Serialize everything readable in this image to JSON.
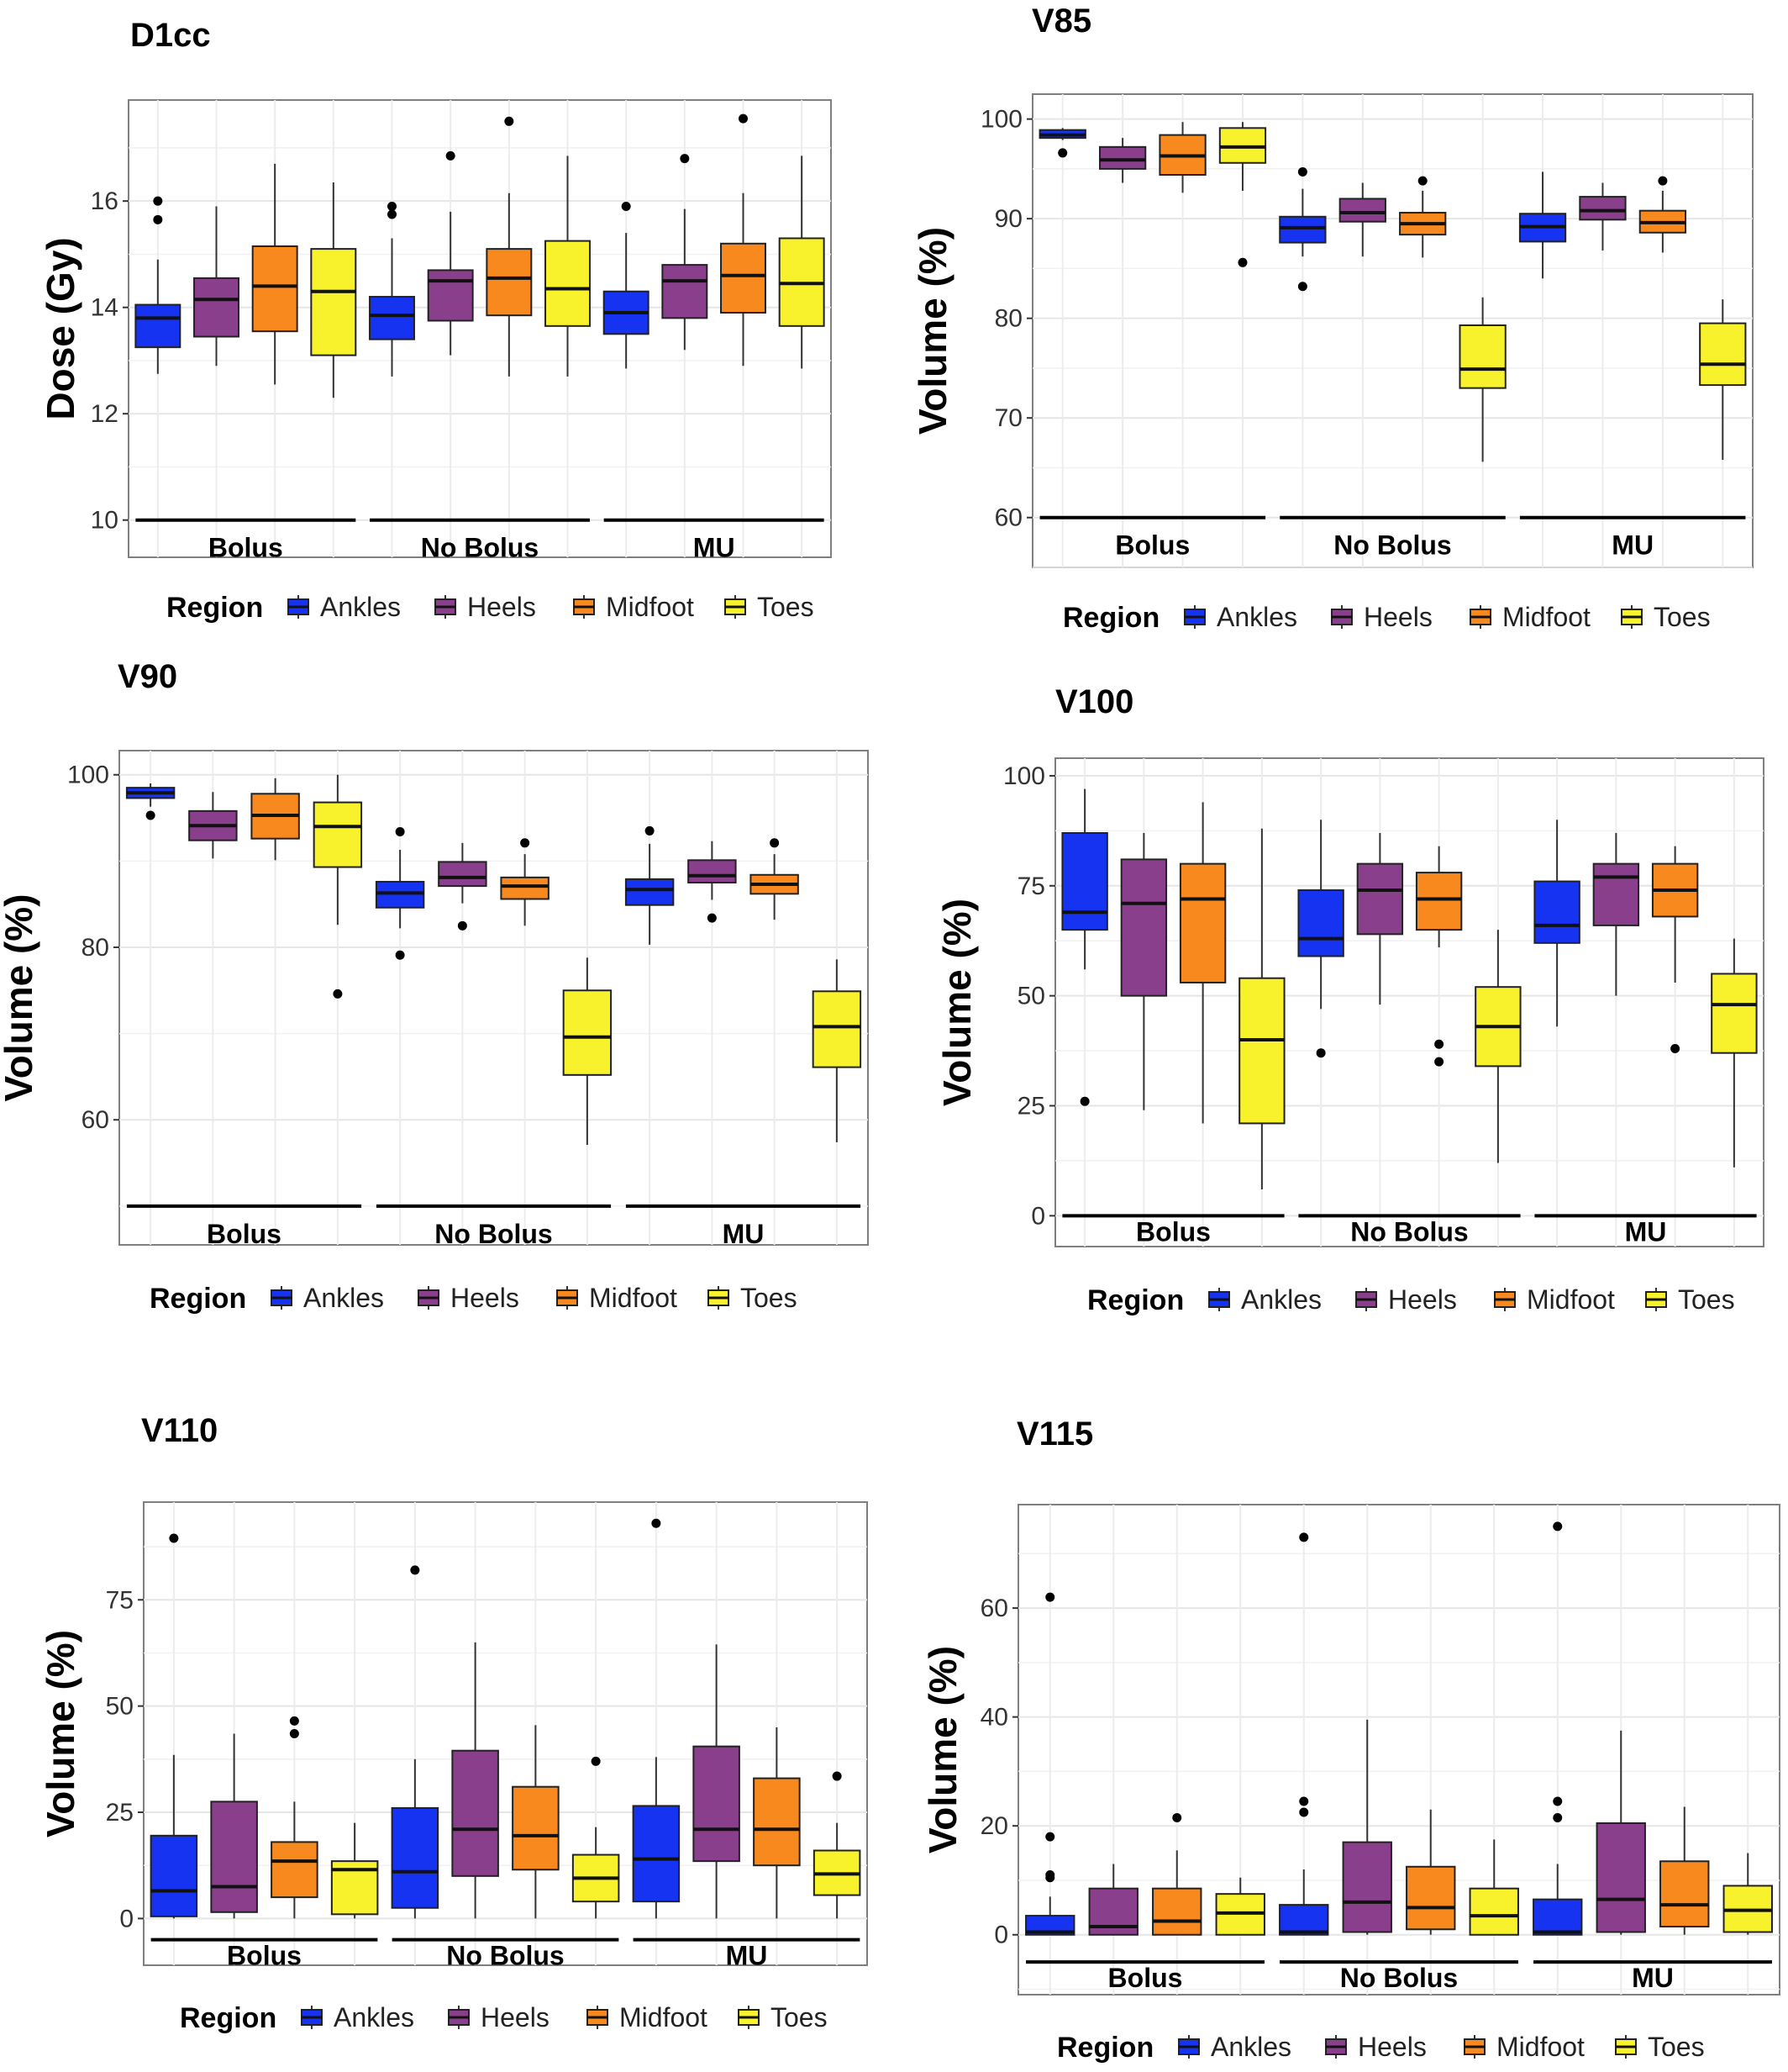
{
  "figure": {
    "legend_title": "Region",
    "regions": [
      "Ankles",
      "Heels",
      "Midfoot",
      "Toes"
    ],
    "colors": {
      "Ankles": "#1533f0",
      "Heels": "#8a3f8c",
      "Midfoot": "#f7891f",
      "Toes": "#f8f22d"
    },
    "groups": [
      "Bolus",
      "No Bolus",
      "MU"
    ]
  },
  "chart_data": [
    {
      "type": "box",
      "title": "D1cc",
      "ylabel": "Dose (Gy)",
      "ylim": [
        9.3,
        17.9
      ],
      "yticks": [
        10,
        12,
        14,
        16
      ],
      "group_line": 10,
      "groups": [
        "Bolus",
        "No Bolus",
        "MU"
      ],
      "series": [
        {
          "name": "Ankles",
          "boxes": [
            {
              "min": 12.75,
              "q1": 13.25,
              "median": 13.8,
              "q3": 14.05,
              "max": 14.9,
              "outliers": [
                15.65,
                16.0
              ]
            },
            {
              "min": 12.7,
              "q1": 13.4,
              "median": 13.85,
              "q3": 14.2,
              "max": 15.3,
              "outliers": [
                15.75,
                15.9
              ]
            },
            {
              "min": 12.85,
              "q1": 13.5,
              "median": 13.9,
              "q3": 14.3,
              "max": 15.4,
              "outliers": [
                15.9
              ]
            }
          ]
        },
        {
          "name": "Heels",
          "boxes": [
            {
              "min": 12.9,
              "q1": 13.45,
              "median": 14.15,
              "q3": 14.55,
              "max": 15.9,
              "outliers": []
            },
            {
              "min": 13.1,
              "q1": 13.75,
              "median": 14.5,
              "q3": 14.7,
              "max": 15.8,
              "outliers": [
                16.85
              ]
            },
            {
              "min": 13.2,
              "q1": 13.8,
              "median": 14.5,
              "q3": 14.8,
              "max": 15.85,
              "outliers": [
                16.8
              ]
            }
          ]
        },
        {
          "name": "Midfoot",
          "boxes": [
            {
              "min": 12.55,
              "q1": 13.55,
              "median": 14.4,
              "q3": 15.15,
              "max": 16.7,
              "outliers": []
            },
            {
              "min": 12.7,
              "q1": 13.85,
              "median": 14.55,
              "q3": 15.1,
              "max": 16.15,
              "outliers": [
                17.5
              ]
            },
            {
              "min": 12.9,
              "q1": 13.9,
              "median": 14.6,
              "q3": 15.2,
              "max": 16.15,
              "outliers": [
                17.55
              ]
            }
          ]
        },
        {
          "name": "Toes",
          "boxes": [
            {
              "min": 12.3,
              "q1": 13.1,
              "median": 14.3,
              "q3": 15.1,
              "max": 16.35,
              "outliers": []
            },
            {
              "min": 12.7,
              "q1": 13.65,
              "median": 14.35,
              "q3": 15.25,
              "max": 16.85,
              "outliers": []
            },
            {
              "min": 12.85,
              "q1": 13.65,
              "median": 14.45,
              "q3": 15.3,
              "max": 16.85,
              "outliers": []
            }
          ]
        }
      ]
    },
    {
      "type": "box",
      "title": "V85",
      "ylabel": "Volume (%)",
      "ylim": [
        55,
        102.5
      ],
      "yticks": [
        60,
        70,
        80,
        90,
        100
      ],
      "group_line": 60,
      "groups": [
        "Bolus",
        "No Bolus",
        "MU"
      ],
      "series": [
        {
          "name": "Ankles",
          "boxes": [
            {
              "min": 97.9,
              "q1": 98.1,
              "median": 98.4,
              "q3": 98.9,
              "max": 99.1,
              "outliers": [
                96.6
              ]
            },
            {
              "min": 86.2,
              "q1": 87.6,
              "median": 89.1,
              "q3": 90.2,
              "max": 93.0,
              "outliers": [
                94.7,
                83.2
              ]
            },
            {
              "min": 84.0,
              "q1": 87.7,
              "median": 89.2,
              "q3": 90.5,
              "max": 94.7,
              "outliers": []
            }
          ]
        },
        {
          "name": "Heels",
          "boxes": [
            {
              "min": 93.6,
              "q1": 95.0,
              "median": 95.9,
              "q3": 97.2,
              "max": 98.1,
              "outliers": []
            },
            {
              "min": 86.2,
              "q1": 89.7,
              "median": 90.6,
              "q3": 92.0,
              "max": 93.6,
              "outliers": []
            },
            {
              "min": 86.8,
              "q1": 89.9,
              "median": 90.8,
              "q3": 92.2,
              "max": 93.6,
              "outliers": []
            }
          ]
        },
        {
          "name": "Midfoot",
          "boxes": [
            {
              "min": 92.6,
              "q1": 94.4,
              "median": 96.3,
              "q3": 98.4,
              "max": 99.7,
              "outliers": []
            },
            {
              "min": 86.1,
              "q1": 88.4,
              "median": 89.5,
              "q3": 90.6,
              "max": 92.8,
              "outliers": [
                93.8
              ]
            },
            {
              "min": 86.6,
              "q1": 88.6,
              "median": 89.6,
              "q3": 90.8,
              "max": 92.8,
              "outliers": [
                93.8
              ]
            }
          ]
        },
        {
          "name": "Toes",
          "boxes": [
            {
              "min": 92.8,
              "q1": 95.6,
              "median": 97.2,
              "q3": 99.1,
              "max": 99.7,
              "outliers": [
                85.6
              ]
            },
            {
              "min": 65.6,
              "q1": 73.0,
              "median": 74.9,
              "q3": 79.3,
              "max": 82.1,
              "outliers": []
            },
            {
              "min": 65.8,
              "q1": 73.3,
              "median": 75.4,
              "q3": 79.5,
              "max": 81.9,
              "outliers": []
            }
          ]
        }
      ]
    },
    {
      "type": "box",
      "title": "V90",
      "ylabel": "Volume (%)",
      "ylim": [
        45.5,
        102.8
      ],
      "yticks": [
        60,
        80,
        100
      ],
      "group_line": 50,
      "groups": [
        "Bolus",
        "No Bolus",
        "MU"
      ],
      "series": [
        {
          "name": "Ankles",
          "boxes": [
            {
              "min": 96.3,
              "q1": 97.3,
              "median": 97.9,
              "q3": 98.5,
              "max": 99.0,
              "outliers": [
                95.3
              ]
            },
            {
              "min": 82.2,
              "q1": 84.6,
              "median": 86.3,
              "q3": 87.6,
              "max": 91.3,
              "outliers": [
                93.4,
                79.1
              ]
            },
            {
              "min": 80.3,
              "q1": 84.9,
              "median": 86.7,
              "q3": 87.9,
              "max": 92.0,
              "outliers": [
                93.5
              ]
            }
          ]
        },
        {
          "name": "Heels",
          "boxes": [
            {
              "min": 90.3,
              "q1": 92.4,
              "median": 94.1,
              "q3": 95.8,
              "max": 98.0,
              "outliers": []
            },
            {
              "min": 85.1,
              "q1": 87.1,
              "median": 88.1,
              "q3": 89.9,
              "max": 92.1,
              "outliers": [
                82.5
              ]
            },
            {
              "min": 85.5,
              "q1": 87.5,
              "median": 88.3,
              "q3": 90.1,
              "max": 92.3,
              "outliers": [
                83.4
              ]
            }
          ]
        },
        {
          "name": "Midfoot",
          "boxes": [
            {
              "min": 90.1,
              "q1": 92.6,
              "median": 95.3,
              "q3": 97.8,
              "max": 99.6,
              "outliers": []
            },
            {
              "min": 82.5,
              "q1": 85.6,
              "median": 87.1,
              "q3": 88.1,
              "max": 90.8,
              "outliers": [
                92.1
              ]
            },
            {
              "min": 83.2,
              "q1": 86.2,
              "median": 87.3,
              "q3": 88.4,
              "max": 90.8,
              "outliers": [
                92.1
              ]
            }
          ]
        },
        {
          "name": "Toes",
          "boxes": [
            {
              "min": 82.6,
              "q1": 89.3,
              "median": 94.0,
              "q3": 96.8,
              "max": 100.0,
              "outliers": [
                74.6
              ]
            },
            {
              "min": 57.1,
              "q1": 65.2,
              "median": 69.6,
              "q3": 75.0,
              "max": 78.8,
              "outliers": []
            },
            {
              "min": 57.4,
              "q1": 66.1,
              "median": 70.8,
              "q3": 74.9,
              "max": 78.6,
              "outliers": []
            }
          ]
        }
      ]
    },
    {
      "type": "box",
      "title": "V100",
      "ylabel": "Volume (%)",
      "ylim": [
        -7,
        104
      ],
      "yticks": [
        0,
        25,
        50,
        75,
        100
      ],
      "group_line": 0,
      "groups": [
        "Bolus",
        "No Bolus",
        "MU"
      ],
      "series": [
        {
          "name": "Ankles",
          "boxes": [
            {
              "min": 56,
              "q1": 65,
              "median": 69,
              "q3": 87,
              "max": 97,
              "outliers": [
                26
              ]
            },
            {
              "min": 47,
              "q1": 59,
              "median": 63,
              "q3": 74,
              "max": 90,
              "outliers": [
                37
              ]
            },
            {
              "min": 43,
              "q1": 62,
              "median": 66,
              "q3": 76,
              "max": 90,
              "outliers": []
            }
          ]
        },
        {
          "name": "Heels",
          "boxes": [
            {
              "min": 24,
              "q1": 50,
              "median": 71,
              "q3": 81,
              "max": 87,
              "outliers": []
            },
            {
              "min": 48,
              "q1": 64,
              "median": 74,
              "q3": 80,
              "max": 87,
              "outliers": []
            },
            {
              "min": 50,
              "q1": 66,
              "median": 77,
              "q3": 80,
              "max": 87,
              "outliers": []
            }
          ]
        },
        {
          "name": "Midfoot",
          "boxes": [
            {
              "min": 21,
              "q1": 53,
              "median": 72,
              "q3": 80,
              "max": 94,
              "outliers": []
            },
            {
              "min": 61,
              "q1": 65,
              "median": 72,
              "q3": 78,
              "max": 84,
              "outliers": [
                39,
                35
              ]
            },
            {
              "min": 53,
              "q1": 68,
              "median": 74,
              "q3": 80,
              "max": 84,
              "outliers": [
                38
              ]
            }
          ]
        },
        {
          "name": "Toes",
          "boxes": [
            {
              "min": 6,
              "q1": 21,
              "median": 40,
              "q3": 54,
              "max": 88,
              "outliers": []
            },
            {
              "min": 12,
              "q1": 34,
              "median": 43,
              "q3": 52,
              "max": 65,
              "outliers": []
            },
            {
              "min": 11,
              "q1": 37,
              "median": 48,
              "q3": 55,
              "max": 63,
              "outliers": []
            }
          ]
        }
      ]
    },
    {
      "type": "box",
      "title": "V110",
      "ylabel": "Volume (%)",
      "ylim": [
        -11,
        98
      ],
      "yticks": [
        0,
        25,
        50,
        75
      ],
      "group_line": -5,
      "groups": [
        "Bolus",
        "No Bolus",
        "MU"
      ],
      "series": [
        {
          "name": "Ankles",
          "boxes": [
            {
              "min": 0,
              "q1": 0.5,
              "median": 6.5,
              "q3": 19.5,
              "max": 38.5,
              "outliers": [
                89.5
              ]
            },
            {
              "min": 0,
              "q1": 2.5,
              "median": 11,
              "q3": 26,
              "max": 37.5,
              "outliers": [
                82
              ]
            },
            {
              "min": 0,
              "q1": 4,
              "median": 14,
              "q3": 26.5,
              "max": 38,
              "outliers": [
                93
              ]
            }
          ]
        },
        {
          "name": "Heels",
          "boxes": [
            {
              "min": 0,
              "q1": 1.5,
              "median": 7.5,
              "q3": 27.5,
              "max": 43.5,
              "outliers": []
            },
            {
              "min": 0,
              "q1": 10,
              "median": 21,
              "q3": 39.5,
              "max": 65,
              "outliers": []
            },
            {
              "min": 0,
              "q1": 13.5,
              "median": 21,
              "q3": 40.5,
              "max": 64.5,
              "outliers": []
            }
          ]
        },
        {
          "name": "Midfoot",
          "boxes": [
            {
              "min": 0,
              "q1": 5,
              "median": 13.5,
              "q3": 18,
              "max": 27.5,
              "outliers": [
                46.5,
                43.5
              ]
            },
            {
              "min": 0,
              "q1": 11.5,
              "median": 19.5,
              "q3": 31,
              "max": 45.5,
              "outliers": []
            },
            {
              "min": 0,
              "q1": 12.5,
              "median": 21,
              "q3": 33,
              "max": 45,
              "outliers": []
            }
          ]
        },
        {
          "name": "Toes",
          "boxes": [
            {
              "min": 0,
              "q1": 1,
              "median": 11.5,
              "q3": 13.5,
              "max": 22.5,
              "outliers": []
            },
            {
              "min": 0,
              "q1": 4,
              "median": 9.5,
              "q3": 15,
              "max": 21.5,
              "outliers": [
                37
              ]
            },
            {
              "min": 0,
              "q1": 5.5,
              "median": 10.5,
              "q3": 16,
              "max": 22.5,
              "outliers": [
                33.5
              ]
            }
          ]
        }
      ]
    },
    {
      "type": "box",
      "title": "V115",
      "ylabel": "Volume (%)",
      "ylim": [
        -11,
        79
      ],
      "yticks": [
        0,
        20,
        40,
        60
      ],
      "group_line": -5,
      "groups": [
        "Bolus",
        "No Bolus",
        "MU"
      ],
      "series": [
        {
          "name": "Ankles",
          "boxes": [
            {
              "min": 0,
              "q1": 0,
              "median": 0.5,
              "q3": 3.5,
              "max": 7,
              "outliers": [
                62,
                18,
                11,
                10.5
              ]
            },
            {
              "min": 0,
              "q1": 0,
              "median": 0.5,
              "q3": 5.5,
              "max": 12,
              "outliers": [
                73,
                24.5,
                22.5
              ]
            },
            {
              "min": 0,
              "q1": 0,
              "median": 0.5,
              "q3": 6.5,
              "max": 13,
              "outliers": [
                75,
                24.5,
                21.5
              ]
            }
          ]
        },
        {
          "name": "Heels",
          "boxes": [
            {
              "min": 0,
              "q1": 0,
              "median": 1.5,
              "q3": 8.5,
              "max": 13,
              "outliers": []
            },
            {
              "min": 0,
              "q1": 0.5,
              "median": 6,
              "q3": 17,
              "max": 39.5,
              "outliers": []
            },
            {
              "min": 0,
              "q1": 0.5,
              "median": 6.5,
              "q3": 20.5,
              "max": 37.5,
              "outliers": []
            }
          ]
        },
        {
          "name": "Midfoot",
          "boxes": [
            {
              "min": 0,
              "q1": 0,
              "median": 2.5,
              "q3": 8.5,
              "max": 15.5,
              "outliers": [
                21.5
              ]
            },
            {
              "min": 0,
              "q1": 1,
              "median": 5,
              "q3": 12.5,
              "max": 23,
              "outliers": []
            },
            {
              "min": 0,
              "q1": 1.5,
              "median": 5.5,
              "q3": 13.5,
              "max": 23.5,
              "outliers": []
            }
          ]
        },
        {
          "name": "Toes",
          "boxes": [
            {
              "min": 0,
              "q1": 0,
              "median": 4,
              "q3": 7.5,
              "max": 10.5,
              "outliers": []
            },
            {
              "min": 0,
              "q1": 0,
              "median": 3.5,
              "q3": 8.5,
              "max": 17.5,
              "outliers": []
            },
            {
              "min": 0,
              "q1": 0.5,
              "median": 4.5,
              "q3": 9,
              "max": 15,
              "outliers": []
            }
          ]
        }
      ]
    }
  ]
}
